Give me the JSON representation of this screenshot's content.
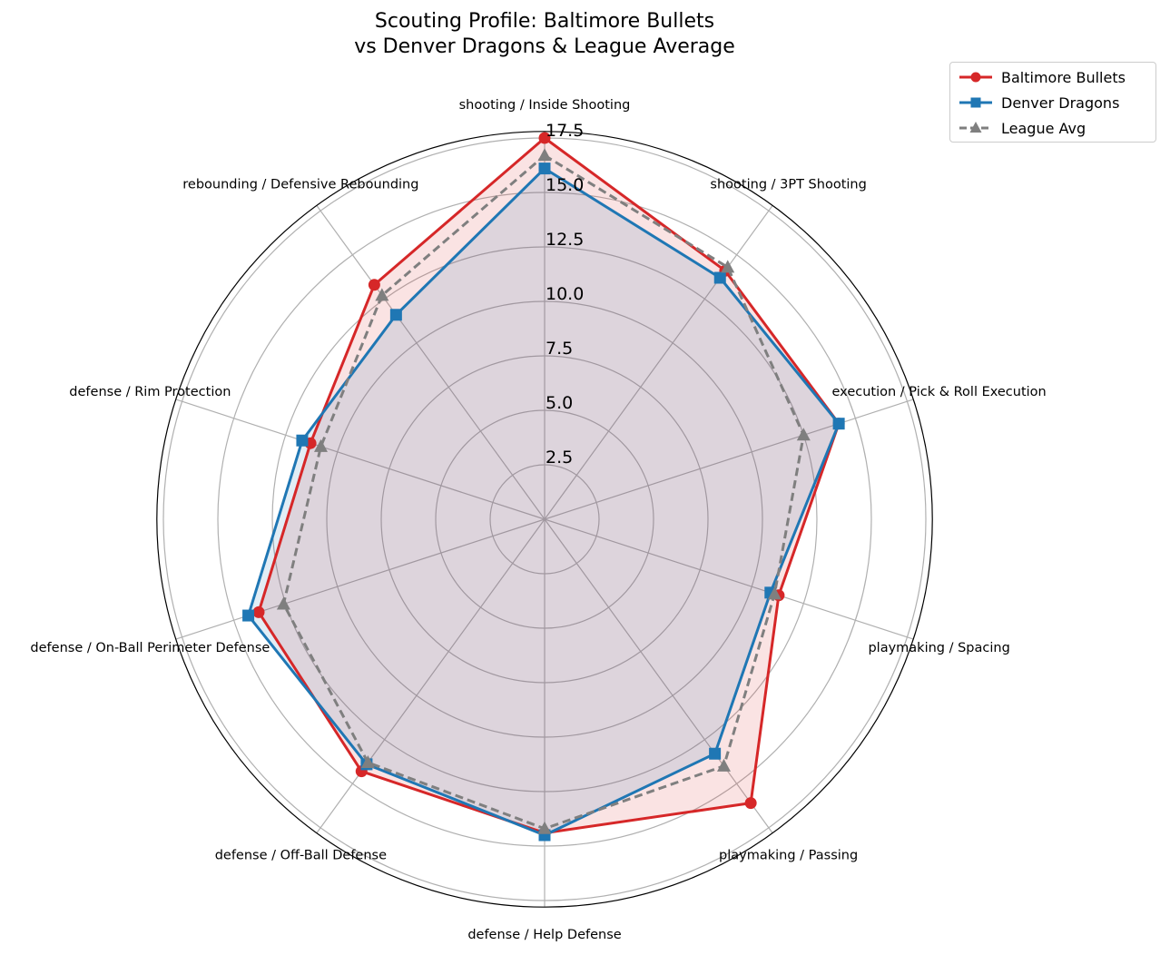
{
  "chart_data": {
    "type": "radar",
    "title": "Scouting Profile: Baltimore Bullets\nvs Denver Dragons & League Average",
    "title_lines": [
      "Scouting Profile: Baltimore Bullets",
      "vs Denver Dragons & League Average"
    ],
    "categories": [
      "shooting / Inside Shooting",
      "shooting / 3PT Shooting",
      "execution / Pick & Roll Execution",
      "playmaking / Spacing",
      "playmaking / Passing",
      "defense / Help Defense",
      "defense / Off-Ball Defense",
      "defense / On-Ball Perimeter Defense",
      "defense / Rim Protection",
      "rebounding / Defensive Rebounding"
    ],
    "r_ticks": [
      "2.5",
      "5.0",
      "7.5",
      "10.0",
      "12.5",
      "15.0",
      "17.5"
    ],
    "rlim": [
      0,
      17.8
    ],
    "grid": true,
    "legend_position": "top-right",
    "series": [
      {
        "name": "Baltimore Bullets",
        "color": "#d62728",
        "marker": "circle",
        "linestyle": "solid",
        "filled": true,
        "values": [
          17.5,
          14.1,
          14.2,
          11.3,
          16.1,
          14.4,
          14.3,
          13.8,
          11.3,
          13.3
        ]
      },
      {
        "name": "Denver Dragons",
        "color": "#1f77b4",
        "marker": "square",
        "linestyle": "solid",
        "filled": true,
        "values": [
          16.1,
          13.7,
          14.2,
          10.9,
          13.3,
          14.5,
          13.9,
          14.3,
          11.7,
          11.6
        ]
      },
      {
        "name": "League Avg",
        "color": "#7f7f7f",
        "marker": "triangle",
        "linestyle": "dashed",
        "filled": false,
        "values": [
          16.7,
          14.3,
          12.5,
          11.1,
          14.0,
          14.2,
          13.8,
          12.6,
          10.8,
          12.7
        ]
      }
    ]
  }
}
